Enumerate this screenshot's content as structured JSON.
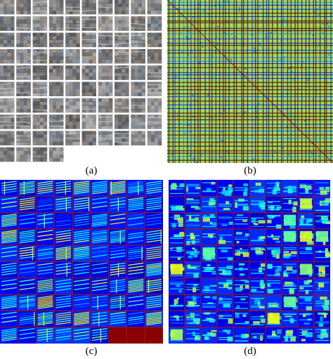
{
  "captions": {
    "a": "(a)",
    "b": "(b)",
    "c": "(c)",
    "d": "(d)"
  },
  "panel_a": {
    "columns": 10,
    "rows": 10,
    "filled_cells": 94,
    "palette": "grayscale-noise"
  },
  "panel_b": {
    "palette": "jet",
    "background_color": "#9fd85a"
  },
  "panel_c": {
    "columns": 9,
    "rows": 10,
    "palette": "jet",
    "grid_line_color": "#8b1a1a",
    "empty_region_color": "#8b0000"
  },
  "panel_d": {
    "columns": 10,
    "rows": 10,
    "palette": "jet",
    "grid_line_color": "#8b1a1a"
  }
}
